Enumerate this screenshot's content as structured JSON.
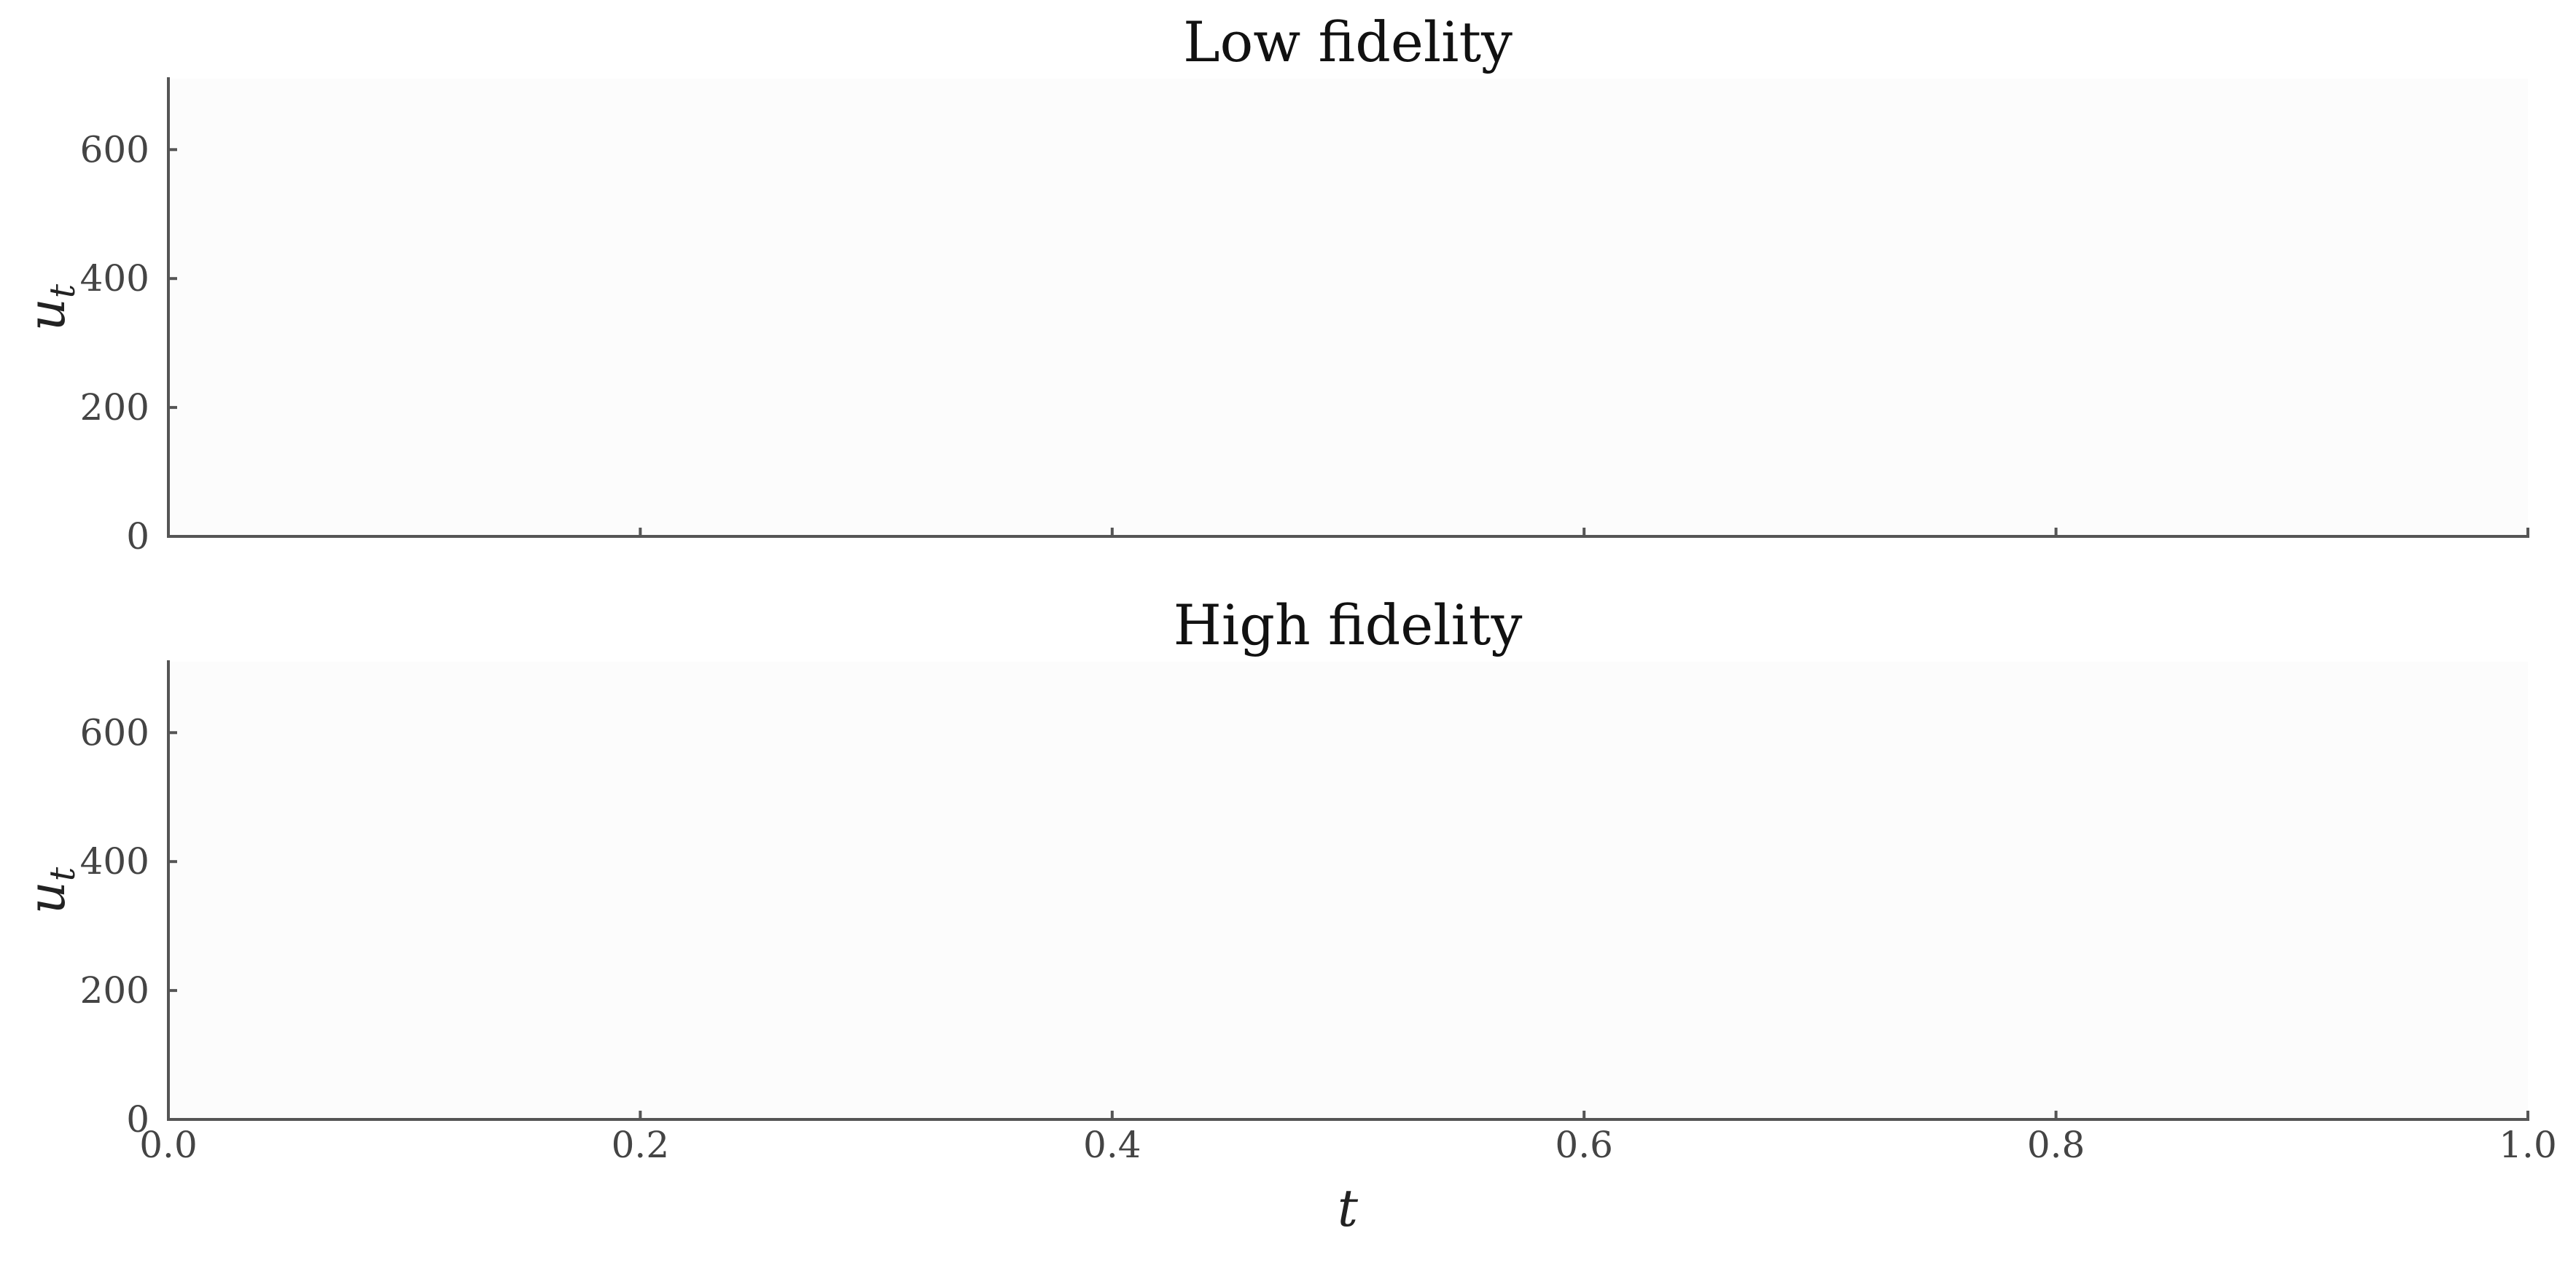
{
  "chart_data": [
    {
      "type": "line",
      "title": "Low fidelity",
      "xlabel": "",
      "ylabel": "u_t",
      "ylabel_main": "u",
      "ylabel_sub": "t",
      "xlim": [
        0.0,
        1.0
      ],
      "ylim": [
        0,
        710
      ],
      "xticks": [
        0.0,
        0.2,
        0.4,
        0.6,
        0.8,
        1.0
      ],
      "xtick_labels": [
        "",
        "",
        "",
        "",
        "",
        ""
      ],
      "yticks": [
        0,
        200,
        400,
        600
      ],
      "ytick_labels": [
        "0",
        "200",
        "400",
        "600"
      ],
      "series": [],
      "grid": false,
      "legend": "none"
    },
    {
      "type": "line",
      "title": "High fidelity",
      "xlabel": "t",
      "ylabel": "u_t",
      "ylabel_main": "u",
      "ylabel_sub": "t",
      "xlim": [
        0.0,
        1.0
      ],
      "ylim": [
        0,
        710
      ],
      "xticks": [
        0.0,
        0.2,
        0.4,
        0.6,
        0.8,
        1.0
      ],
      "xtick_labels": [
        "0.0",
        "0.2",
        "0.4",
        "0.6",
        "0.8",
        "1.0"
      ],
      "yticks": [
        0,
        200,
        400,
        600
      ],
      "ytick_labels": [
        "0",
        "200",
        "400",
        "600"
      ],
      "series": [],
      "grid": false,
      "legend": "none"
    }
  ]
}
